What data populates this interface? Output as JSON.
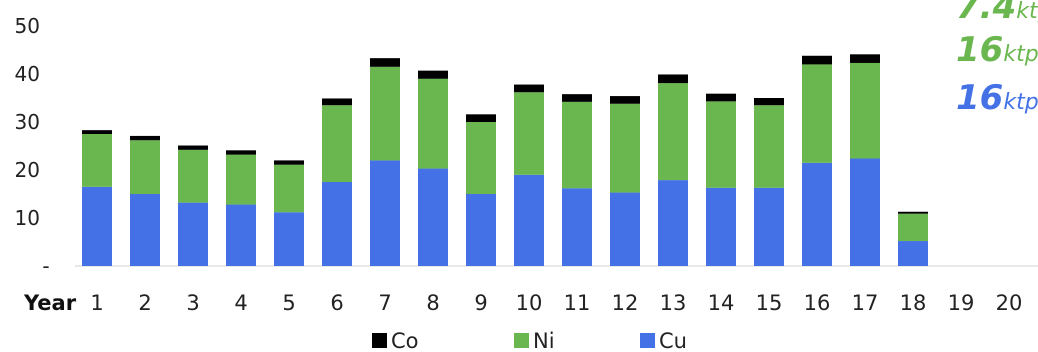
{
  "colors": {
    "Co": "#000000",
    "Ni": "#6ab64f",
    "Cu": "#4472e6"
  },
  "callouts": [
    {
      "value": "7.4",
      "unit": "ktp",
      "color": "#6ab64f"
    },
    {
      "value": "16",
      "unit": "ktp",
      "color": "#6ab64f"
    },
    {
      "value": "16",
      "unit": "ktp",
      "color": "#4472e6"
    }
  ],
  "chart_data": {
    "type": "bar",
    "stacked": true,
    "xlabel": "Year",
    "ylabel": "",
    "ylim": [
      0,
      50
    ],
    "yticks": [
      "-",
      "10",
      "20",
      "30",
      "40",
      "50"
    ],
    "grid": false,
    "legend": {
      "position": "bottom",
      "order": [
        "Co",
        "Ni",
        "Cu"
      ]
    },
    "categories": [
      "1",
      "2",
      "3",
      "4",
      "5",
      "6",
      "7",
      "8",
      "9",
      "10",
      "11",
      "12",
      "13",
      "14",
      "15",
      "16",
      "17",
      "18",
      "19",
      "20"
    ],
    "series": [
      {
        "name": "Cu",
        "values": [
          16.5,
          15.0,
          13.2,
          12.8,
          11.2,
          17.5,
          22.0,
          20.3,
          15.0,
          19.0,
          16.2,
          15.3,
          17.9,
          16.3,
          16.3,
          21.5,
          22.4,
          5.2,
          0,
          0
        ]
      },
      {
        "name": "Ni",
        "values": [
          11.0,
          11.2,
          11.0,
          10.4,
          9.9,
          16.0,
          19.5,
          18.7,
          15.0,
          17.2,
          18.0,
          18.5,
          20.2,
          18.0,
          17.2,
          20.5,
          19.9,
          5.7,
          0,
          0
        ]
      },
      {
        "name": "Co",
        "values": [
          0.8,
          0.9,
          0.9,
          0.9,
          0.9,
          1.4,
          1.8,
          1.7,
          1.6,
          1.6,
          1.6,
          1.6,
          1.8,
          1.6,
          1.5,
          1.8,
          1.8,
          0.4,
          0,
          0
        ]
      }
    ]
  }
}
